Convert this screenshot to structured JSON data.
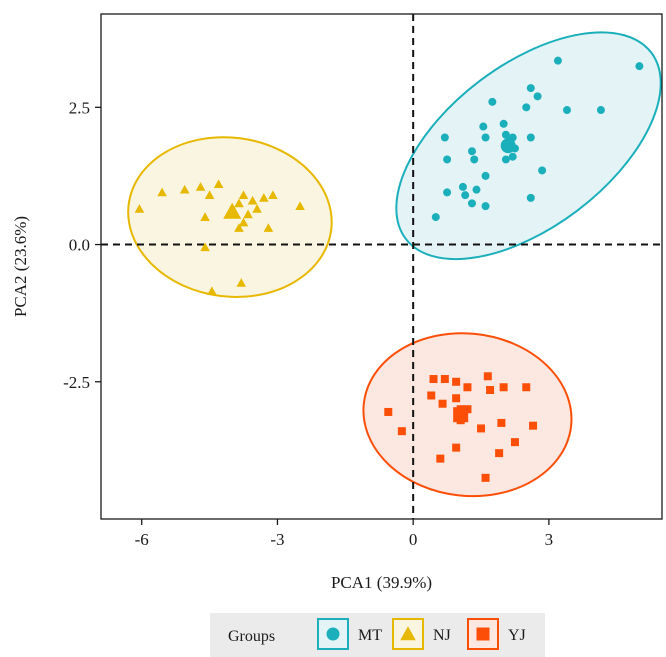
{
  "chart_data": {
    "type": "scatter",
    "xlabel": "PCA1 (39.9%)",
    "ylabel": "PCA2 (23.6%)",
    "xlim": [
      -6.9,
      5.5
    ],
    "ylim": [
      -5.0,
      4.2
    ],
    "xticks": [
      -6,
      -3,
      0,
      3
    ],
    "yticks": [
      -2.5,
      0.0,
      2.5
    ],
    "xtick_labels": [
      "-6",
      "-3",
      "0",
      "3"
    ],
    "ytick_labels": [
      "-2.5",
      "0.0",
      "2.5"
    ],
    "reference_lines": {
      "x": 0,
      "y": 0
    },
    "legend": {
      "title": "Groups",
      "position": "bottom"
    },
    "series": [
      {
        "name": "MT",
        "color": "#1AAFBB",
        "fill": "#E3F3F6",
        "marker": "circle",
        "centroid": [
          2.1,
          1.8
        ],
        "ellipse": {
          "center": [
            2.55,
            1.8
          ],
          "semi_major": 3.2,
          "semi_minor": 1.55,
          "angle_deg": 32
        },
        "points": [
          [
            5.0,
            3.25
          ],
          [
            3.2,
            3.35
          ],
          [
            4.15,
            2.45
          ],
          [
            3.4,
            2.45
          ],
          [
            2.6,
            2.85
          ],
          [
            2.75,
            2.7
          ],
          [
            1.75,
            2.6
          ],
          [
            2.5,
            2.5
          ],
          [
            1.55,
            2.15
          ],
          [
            2.0,
            2.2
          ],
          [
            2.05,
            2.0
          ],
          [
            2.15,
            1.9
          ],
          [
            2.2,
            1.95
          ],
          [
            2.25,
            1.75
          ],
          [
            2.05,
            1.55
          ],
          [
            2.2,
            1.6
          ],
          [
            2.6,
            1.95
          ],
          [
            1.6,
            1.95
          ],
          [
            0.7,
            1.95
          ],
          [
            1.3,
            1.7
          ],
          [
            0.75,
            1.55
          ],
          [
            1.35,
            1.55
          ],
          [
            1.6,
            1.25
          ],
          [
            1.4,
            1.0
          ],
          [
            1.15,
            0.9
          ],
          [
            1.3,
            0.75
          ],
          [
            0.75,
            0.95
          ],
          [
            1.1,
            1.05
          ],
          [
            2.85,
            1.35
          ],
          [
            0.5,
            0.5
          ],
          [
            2.6,
            0.85
          ],
          [
            1.6,
            0.7
          ]
        ]
      },
      {
        "name": "NJ",
        "color": "#E7B800",
        "fill": "#FAF5E0",
        "marker": "triangle",
        "centroid": [
          -4.0,
          0.6
        ],
        "ellipse": {
          "center": [
            -4.05,
            0.5
          ],
          "semi_major": 2.25,
          "semi_minor": 1.45,
          "angle_deg": -6
        },
        "points": [
          [
            -4.3,
            1.1
          ],
          [
            -5.55,
            0.95
          ],
          [
            -5.05,
            1.0
          ],
          [
            -4.7,
            1.05
          ],
          [
            -3.75,
            0.9
          ],
          [
            -3.3,
            0.85
          ],
          [
            -3.1,
            0.9
          ],
          [
            -3.55,
            0.8
          ],
          [
            -3.85,
            0.75
          ],
          [
            -3.45,
            0.65
          ],
          [
            -3.65,
            0.55
          ],
          [
            -3.75,
            0.4
          ],
          [
            -3.85,
            0.3
          ],
          [
            -6.05,
            0.65
          ],
          [
            -4.5,
            0.9
          ],
          [
            -4.6,
            0.5
          ],
          [
            -3.2,
            0.3
          ],
          [
            -2.5,
            0.7
          ],
          [
            -4.6,
            -0.05
          ],
          [
            -4.45,
            -0.85
          ],
          [
            -3.8,
            -0.7
          ]
        ]
      },
      {
        "name": "YJ",
        "color": "#FC4E07",
        "fill": "#FCE8E0",
        "marker": "square",
        "centroid": [
          1.05,
          -3.1
        ],
        "ellipse": {
          "center": [
            1.2,
            -3.1
          ],
          "semi_major": 2.3,
          "semi_minor": 1.48,
          "angle_deg": -5
        },
        "points": [
          [
            0.45,
            -2.45
          ],
          [
            0.7,
            -2.45
          ],
          [
            0.95,
            -2.5
          ],
          [
            1.2,
            -2.6
          ],
          [
            1.65,
            -2.4
          ],
          [
            1.7,
            -2.65
          ],
          [
            2.0,
            -2.6
          ],
          [
            2.5,
            -2.6
          ],
          [
            0.4,
            -2.75
          ],
          [
            0.65,
            -2.9
          ],
          [
            0.95,
            -2.8
          ],
          [
            1.05,
            -3.0
          ],
          [
            1.2,
            -3.0
          ],
          [
            1.05,
            -3.2
          ],
          [
            1.5,
            -3.35
          ],
          [
            1.95,
            -3.25
          ],
          [
            2.65,
            -3.3
          ],
          [
            -0.55,
            -3.05
          ],
          [
            -0.25,
            -3.4
          ],
          [
            2.25,
            -3.6
          ],
          [
            1.9,
            -3.8
          ],
          [
            0.95,
            -3.7
          ],
          [
            0.6,
            -3.9
          ],
          [
            1.6,
            -4.25
          ]
        ]
      }
    ]
  }
}
